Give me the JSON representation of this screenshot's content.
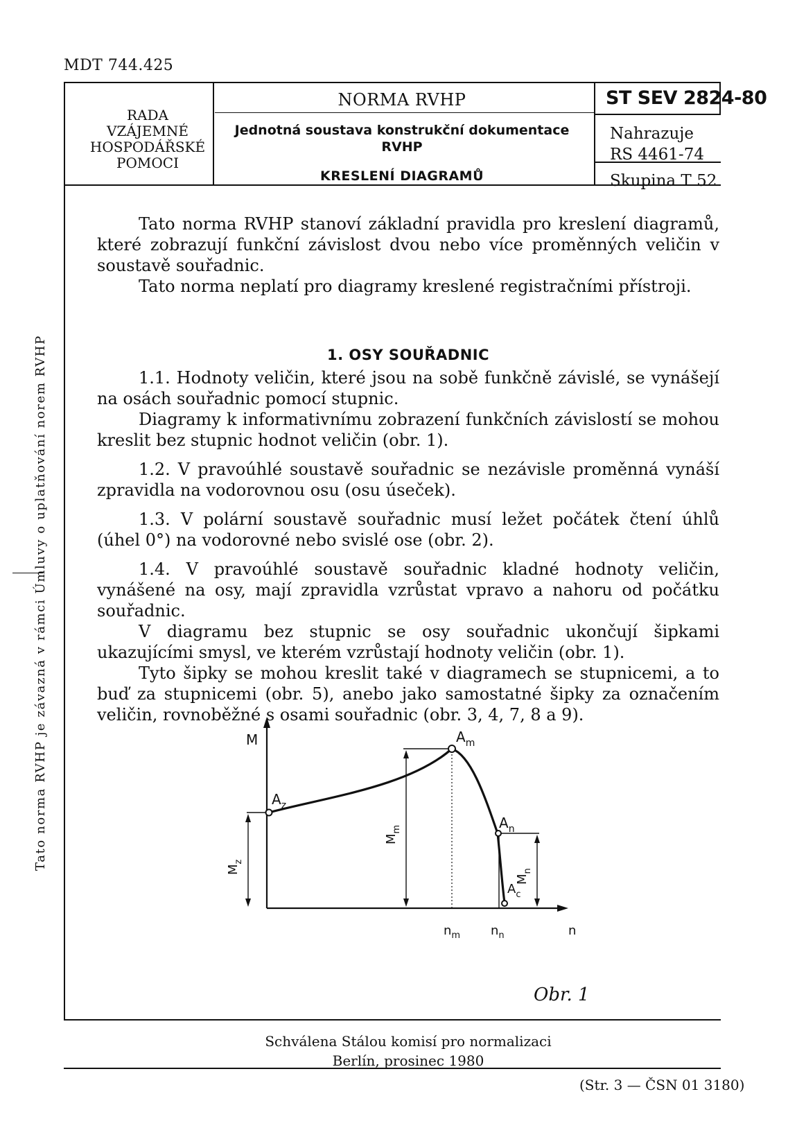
{
  "header": {
    "mdt": "MDT 744.425",
    "council": [
      "RADA",
      "VZÁJEMNÉ",
      "HOSPODÁŘSKÉ",
      "POMOCI"
    ],
    "norm_type": "NORMA RVHP",
    "subtitle_line1": "Jednotná soustava konstrukční dokumentace",
    "subtitle_line2": "RVHP",
    "title": "KRESLENÍ DIAGRAMŮ",
    "standard_no": "ST SEV 2824-80",
    "replaces_label": "Nahrazuje",
    "replaces_value": "RS 4461-74",
    "group": "Skupina T 52"
  },
  "side_note": "Tato norma RVHP je závazná v rámci Úmluvy o uplatňování norem RVHP",
  "intro": [
    "Tato norma RVHP stanoví základní pravidla pro kreslení diagramů, které zobrazují funkční závislost dvou nebo více proměnných veličin v soustavě souřadnic.",
    "Tato norma neplatí pro diagramy kreslené registračními přístroji."
  ],
  "section": {
    "title": "1. OSY SOUŘADNIC",
    "paragraphs": [
      "1.1. Hodnoty veličin, které jsou na sobě funkčně závislé, se vynášejí na osách souřadnic pomocí stupnic.",
      "Diagramy k informativnímu zobrazení funkčních závislostí se mohou kreslit bez stupnic hodnot veličin (obr. 1).",
      "1.2. V pravoúhlé soustavě souřadnic se nezávisle proměnná vynáší zpravidla na vodorovnou osu (osu úseček).",
      "1.3. V polární soustavě souřadnic musí ležet počátek čtení úhlů (úhel 0°) na vodorovné nebo svislé ose (obr. 2).",
      "1.4. V pravoúhlé soustavě souřadnic kladné hodnoty veličin, vynášené na osy, mají zpravidla vzrůstat vpravo a nahoru od počátku souřadnic.",
      "V diagramu bez stupnic se osy souřadnic ukončují šipkami ukazujícími smysl, ve kterém vzrůstají hodnoty veličin (obr. 1).",
      "Tyto šipky se mohou kreslit také v diagramech se stupnicemi, a to buď za stupnicemi (obr. 5), anebo jako samostatné šipky za označením veličin, rovnoběžné s osami souřadnic (obr. 3, 4, 7, 8 a 9)."
    ]
  },
  "figure": {
    "y_axis_label": "M",
    "x_axis_label": "n",
    "point_labels": {
      "az": "A",
      "az_sub": "z",
      "am": "A",
      "am_sub": "m",
      "an": "A",
      "an_sub": "n",
      "ac": "A",
      "ac_sub": "c"
    },
    "dim_labels": {
      "mz": "M",
      "mz_sub": "z",
      "mm": "M",
      "mm_sub": "m",
      "mn": "M",
      "mn_sub": "n"
    },
    "x_ticks": {
      "nm": "n",
      "nm_sub": "m",
      "nn": "n",
      "nn_sub": "n"
    },
    "caption": "Obr. 1"
  },
  "footer": {
    "approved_line1": "Schválena Stálou komisí pro normalizaci",
    "approved_line2": "Berlín, prosinec 1980",
    "page_ref": "(Str. 3 — ČSN 01 3180)"
  }
}
